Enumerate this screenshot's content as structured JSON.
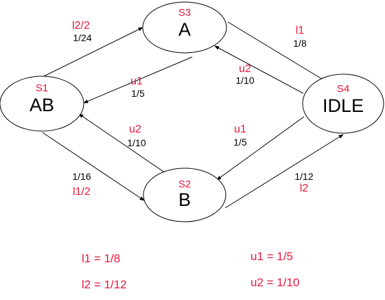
{
  "states": {
    "s3": {
      "id": "S3",
      "name": "A"
    },
    "s1": {
      "id": "S1",
      "name": "AB"
    },
    "s4": {
      "id": "S4",
      "name": "IDLE"
    },
    "s2": {
      "id": "S2",
      "name": "B"
    }
  },
  "edges": {
    "ab_to_a": {
      "label": "l2/2",
      "rate": "1/24"
    },
    "a_to_idle": {
      "label": "l1",
      "rate": "1/8"
    },
    "a_to_ab": {
      "label": "u1",
      "rate": "1/5"
    },
    "idle_to_a": {
      "label": "u2",
      "rate": "1/10"
    },
    "b_to_ab": {
      "label": "u2",
      "rate": "1/10"
    },
    "idle_to_b": {
      "label": "u1",
      "rate": "1/5"
    },
    "ab_to_b": {
      "label": "l1/2",
      "rate": "1/16"
    },
    "b_to_idle": {
      "label": "l2",
      "rate": "1/12"
    }
  },
  "legend": {
    "l1": "l1 = 1/8",
    "l2": "l2 = 1/12",
    "u1": "u1 = 1/5",
    "u2": "u2 = 1/10"
  },
  "colors": {
    "accent": "#e8173b",
    "ink": "#000000"
  }
}
